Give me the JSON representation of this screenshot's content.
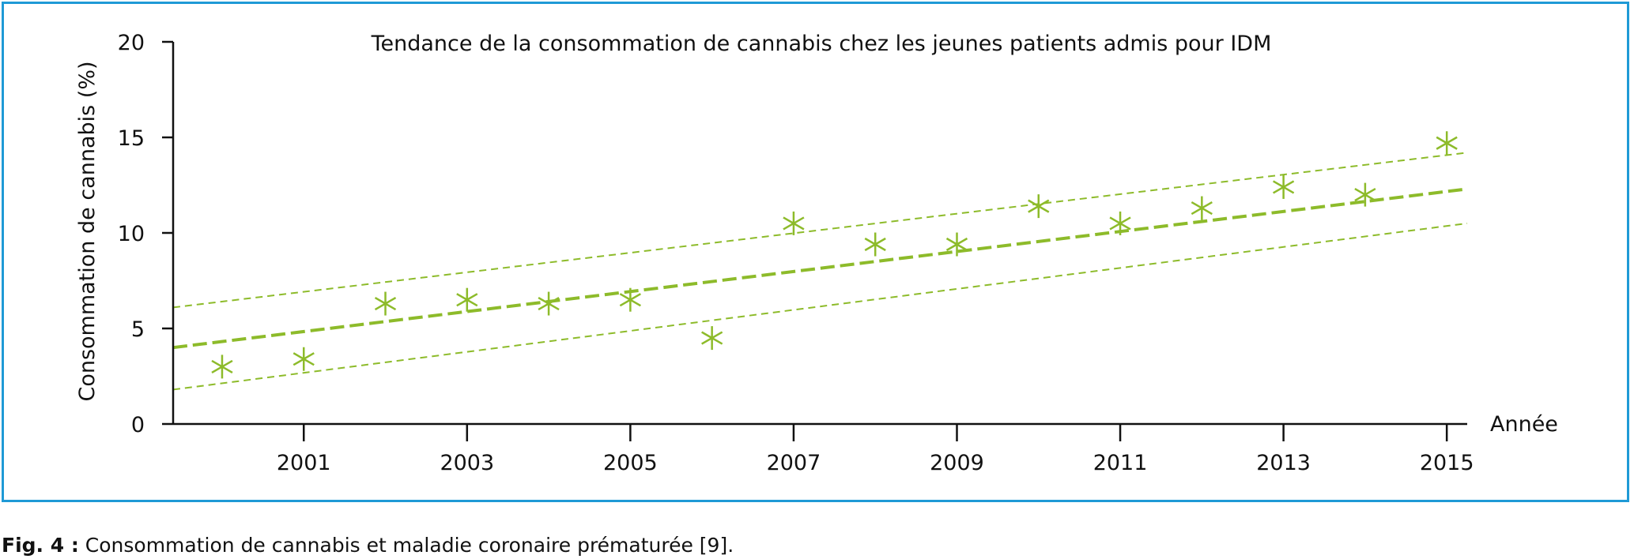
{
  "figure": {
    "caption_label": "Fig. 4 :",
    "caption_text": " Consommation de cannabis et maladie coronaire prématurée [9]."
  },
  "colors": {
    "frame": "#1f9ad6",
    "series": "#8dbb2a",
    "axis": "#111111"
  },
  "chart_data": {
    "type": "scatter",
    "title": "Tendance de la consommation de cannabis chez les jeunes patients admis pour IDM",
    "xlabel": "Année",
    "ylabel": "Consommation de cannabis (%)",
    "xlim": [
      1999.4,
      2015.25
    ],
    "ylim": [
      0,
      20
    ],
    "xticks": [
      2001,
      2003,
      2005,
      2007,
      2009,
      2011,
      2013,
      2015
    ],
    "yticks": [
      0,
      5,
      10,
      15,
      20
    ],
    "series": [
      {
        "marker": "asterisk",
        "x": [
          2000,
          2001,
          2002,
          2003,
          2004,
          2005,
          2006,
          2007,
          2008,
          2009,
          2010,
          2011,
          2012,
          2013,
          2014,
          2015
        ],
        "y": [
          3.0,
          3.4,
          6.3,
          6.5,
          6.3,
          6.5,
          4.5,
          10.5,
          9.4,
          9.4,
          11.4,
          10.5,
          11.3,
          12.4,
          12.0,
          14.7
        ]
      }
    ],
    "trend": {
      "fit": {
        "x": [
          1999.4,
          2015.25
        ],
        "y": [
          4.0,
          12.3
        ]
      },
      "upper": {
        "x": [
          1999.4,
          2015.25
        ],
        "y": [
          6.1,
          14.2
        ]
      },
      "lower": {
        "x": [
          1999.4,
          2015.25
        ],
        "y": [
          1.8,
          10.5
        ]
      }
    }
  }
}
